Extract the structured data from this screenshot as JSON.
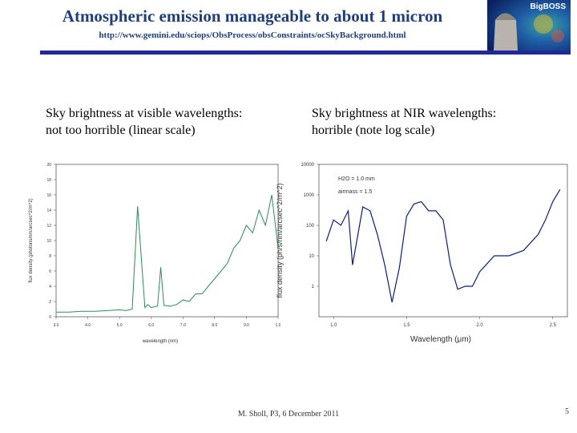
{
  "header": {
    "title": "Atmospheric emission manageable to about 1 micron",
    "url": "http://www.gemini.edu/sciops/ObsProcess/obsConstraints/ocSkyBackground.html",
    "logo_text": "BigBOSS"
  },
  "left_caption": {
    "line1": "Sky brightness at visible wavelengths:",
    "line2": "not too horrible (linear scale)"
  },
  "right_caption": {
    "line1": "Sky brightness at NIR wavelengths:",
    "line2": "horrible (note log scale)"
  },
  "footer": {
    "text": "M. Sholl, P3, 6 December 2011",
    "page_number": "5"
  },
  "colors": {
    "title": "#1f3f7a",
    "rule": "#22289a",
    "visible_series": "#2e8b57",
    "nir_series": "#0a1f7a"
  },
  "chart_data": [
    {
      "type": "line",
      "scale": "linear",
      "xlabel": "wavelength (nm)",
      "ylabel": "flux density (photons/nm/arcsec^2/m^2)",
      "x_ticks": [
        "3.0",
        "4.0",
        "5.0",
        "6.0",
        "7.0",
        "8.0",
        "9.0",
        "1.0"
      ],
      "y_ticks": [
        "0",
        "2",
        "4",
        "6",
        "8",
        "10",
        "12",
        "14",
        "16",
        "18",
        "20"
      ],
      "xlim": [
        300,
        1000
      ],
      "ylim": [
        0,
        20
      ],
      "grid": false,
      "series": [
        {
          "x": [
            300,
            340,
            380,
            420,
            460,
            500,
            520,
            540,
            557,
            580,
            589,
            600,
            620,
            630,
            640,
            660,
            680,
            700,
            720,
            740,
            760,
            780,
            800,
            820,
            840,
            860,
            880,
            900,
            920,
            940,
            960,
            980,
            1000
          ],
          "y": [
            0.6,
            0.6,
            0.7,
            0.7,
            0.8,
            0.9,
            0.8,
            1.0,
            14.5,
            1.2,
            1.6,
            1.2,
            1.4,
            6.5,
            1.5,
            1.4,
            1.6,
            2.2,
            2.0,
            3.0,
            3.0,
            4.0,
            5.0,
            6.0,
            7.0,
            9.0,
            10.0,
            12.0,
            11.0,
            14.0,
            12.0,
            16.0,
            9.0
          ]
        }
      ]
    },
    {
      "type": "line",
      "scale": "log",
      "xlabel": "Wavelength (μm)",
      "ylabel": "flux density (ph/s/nm/arcsec^2/m^2)",
      "x_ticks": [
        "1.0",
        "1.5",
        "2.0",
        "2.5"
      ],
      "y_ticks": [
        "1",
        "10",
        "100",
        "1000",
        "10000"
      ],
      "xlim": [
        0.9,
        2.6
      ],
      "ylim": [
        1,
        10000
      ],
      "annotations": [
        "H2O = 1.0 mm",
        "airmass = 1.5"
      ],
      "grid": false,
      "series": [
        {
          "x": [
            0.95,
            1.0,
            1.05,
            1.1,
            1.13,
            1.2,
            1.25,
            1.3,
            1.35,
            1.4,
            1.45,
            1.5,
            1.55,
            1.6,
            1.65,
            1.7,
            1.75,
            1.8,
            1.85,
            1.9,
            1.95,
            2.0,
            2.1,
            2.2,
            2.3,
            2.4,
            2.45,
            2.5,
            2.55
          ],
          "y": [
            30,
            150,
            100,
            300,
            5,
            400,
            300,
            50,
            5,
            0.3,
            4,
            200,
            500,
            600,
            300,
            300,
            150,
            5,
            0.8,
            1,
            1,
            3,
            10,
            10,
            15,
            50,
            150,
            600,
            1500
          ]
        }
      ]
    }
  ]
}
